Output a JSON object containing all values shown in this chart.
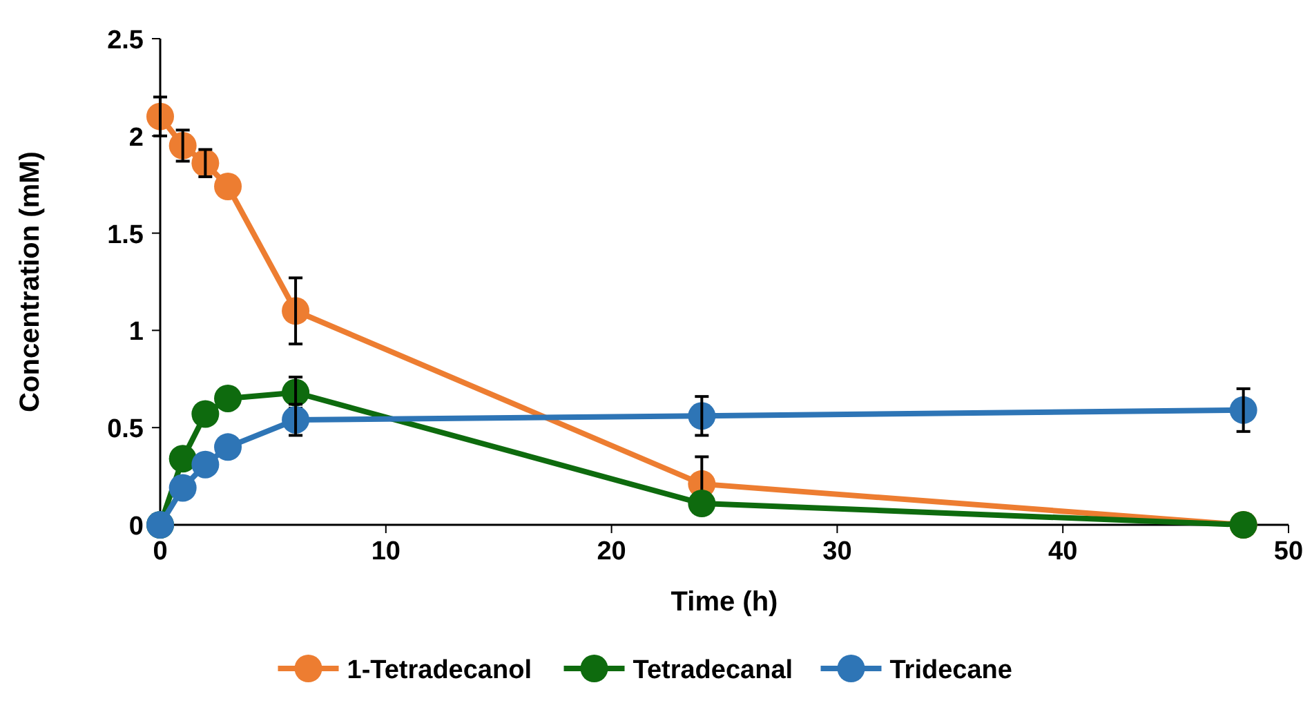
{
  "chart_data": {
    "type": "line",
    "xlabel": "Time (h)",
    "ylabel": "Concentration (mM)",
    "x": [
      0,
      1,
      2,
      3,
      6,
      24,
      48
    ],
    "series": [
      {
        "name": "1-Tetradecanol",
        "color": "#ed7d31",
        "values": [
          2.1,
          1.95,
          1.86,
          1.74,
          1.1,
          0.21,
          0
        ],
        "errors": [
          0.1,
          0.08,
          0.07,
          null,
          0.17,
          0.14,
          null
        ]
      },
      {
        "name": "Tetradecanal",
        "color": "#0e6b0e",
        "values": [
          0,
          0.34,
          0.57,
          0.65,
          0.68,
          0.11,
          0
        ],
        "errors": [
          null,
          null,
          null,
          null,
          0.08,
          null,
          null
        ]
      },
      {
        "name": "Tridecane",
        "color": "#2e75b6",
        "values": [
          0,
          0.19,
          0.31,
          0.4,
          0.54,
          0.56,
          0.59
        ],
        "errors": [
          null,
          null,
          null,
          null,
          0.08,
          0.1,
          0.11
        ]
      }
    ],
    "xlim": [
      0,
      50
    ],
    "xticks": [
      0,
      10,
      20,
      30,
      40,
      50
    ],
    "ylim": [
      0,
      2.5
    ],
    "yticks": [
      0,
      0.5,
      1,
      1.5,
      2,
      2.5
    ],
    "grid": false,
    "legend": "bottom",
    "marker": "circle",
    "line_style": "solid"
  }
}
